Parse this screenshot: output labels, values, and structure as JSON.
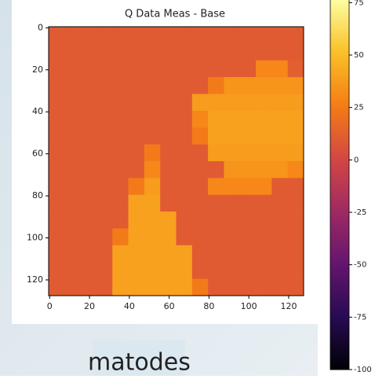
{
  "chart_data": {
    "type": "heatmap",
    "title": "Q Data Meas - Base",
    "colormap": "inferno",
    "xlim": [
      -0.5,
      127.5
    ],
    "ylim": [
      -0.5,
      127.5
    ],
    "xticks": [
      0,
      20,
      40,
      60,
      80,
      100,
      120
    ],
    "yticks": [
      0,
      20,
      40,
      60,
      80,
      100,
      120
    ],
    "cell_size": 8,
    "z": [
      [
        10,
        10,
        10,
        10,
        10,
        10,
        10,
        10,
        10,
        10,
        10,
        10,
        10,
        10,
        10,
        10
      ],
      [
        10,
        10,
        10,
        10,
        10,
        10,
        10,
        10,
        10,
        10,
        10,
        10,
        10,
        10,
        10,
        10
      ],
      [
        10,
        10,
        10,
        10,
        10,
        10,
        10,
        10,
        10,
        10,
        10,
        10,
        10,
        30,
        30,
        12
      ],
      [
        10,
        10,
        10,
        10,
        10,
        10,
        10,
        10,
        10,
        10,
        25,
        35,
        35,
        35,
        35,
        35
      ],
      [
        10,
        10,
        10,
        10,
        10,
        10,
        10,
        10,
        10,
        38,
        38,
        38,
        38,
        38,
        38,
        38
      ],
      [
        10,
        10,
        10,
        10,
        10,
        10,
        10,
        10,
        10,
        30,
        40,
        40,
        40,
        40,
        40,
        40
      ],
      [
        10,
        10,
        10,
        10,
        10,
        10,
        10,
        10,
        10,
        25,
        40,
        40,
        40,
        40,
        40,
        40
      ],
      [
        10,
        10,
        10,
        10,
        10,
        10,
        25,
        10,
        10,
        10,
        38,
        38,
        38,
        38,
        38,
        38
      ],
      [
        10,
        10,
        10,
        10,
        10,
        10,
        30,
        10,
        10,
        10,
        10,
        35,
        35,
        35,
        35,
        30
      ],
      [
        10,
        10,
        10,
        10,
        10,
        25,
        38,
        10,
        10,
        10,
        30,
        30,
        30,
        30,
        10,
        10
      ],
      [
        10,
        10,
        10,
        10,
        10,
        40,
        40,
        10,
        10,
        10,
        10,
        10,
        10,
        10,
        10,
        10
      ],
      [
        10,
        10,
        10,
        10,
        10,
        40,
        40,
        40,
        10,
        10,
        10,
        10,
        10,
        10,
        10,
        10
      ],
      [
        10,
        10,
        10,
        10,
        25,
        40,
        40,
        40,
        10,
        10,
        10,
        10,
        10,
        10,
        10,
        10
      ],
      [
        10,
        10,
        10,
        10,
        40,
        40,
        40,
        40,
        40,
        10,
        10,
        10,
        10,
        10,
        10,
        10
      ],
      [
        10,
        10,
        10,
        10,
        40,
        40,
        40,
        40,
        40,
        10,
        10,
        10,
        10,
        10,
        10,
        10
      ],
      [
        10,
        10,
        10,
        10,
        40,
        40,
        40,
        40,
        40,
        25,
        10,
        10,
        10,
        10,
        10,
        10
      ]
    ],
    "colorbar": {
      "lim": [
        -100,
        77
      ],
      "ticks": [
        75,
        50,
        25,
        0,
        -25,
        -50,
        -75,
        -100
      ]
    }
  },
  "caption": "matodes"
}
